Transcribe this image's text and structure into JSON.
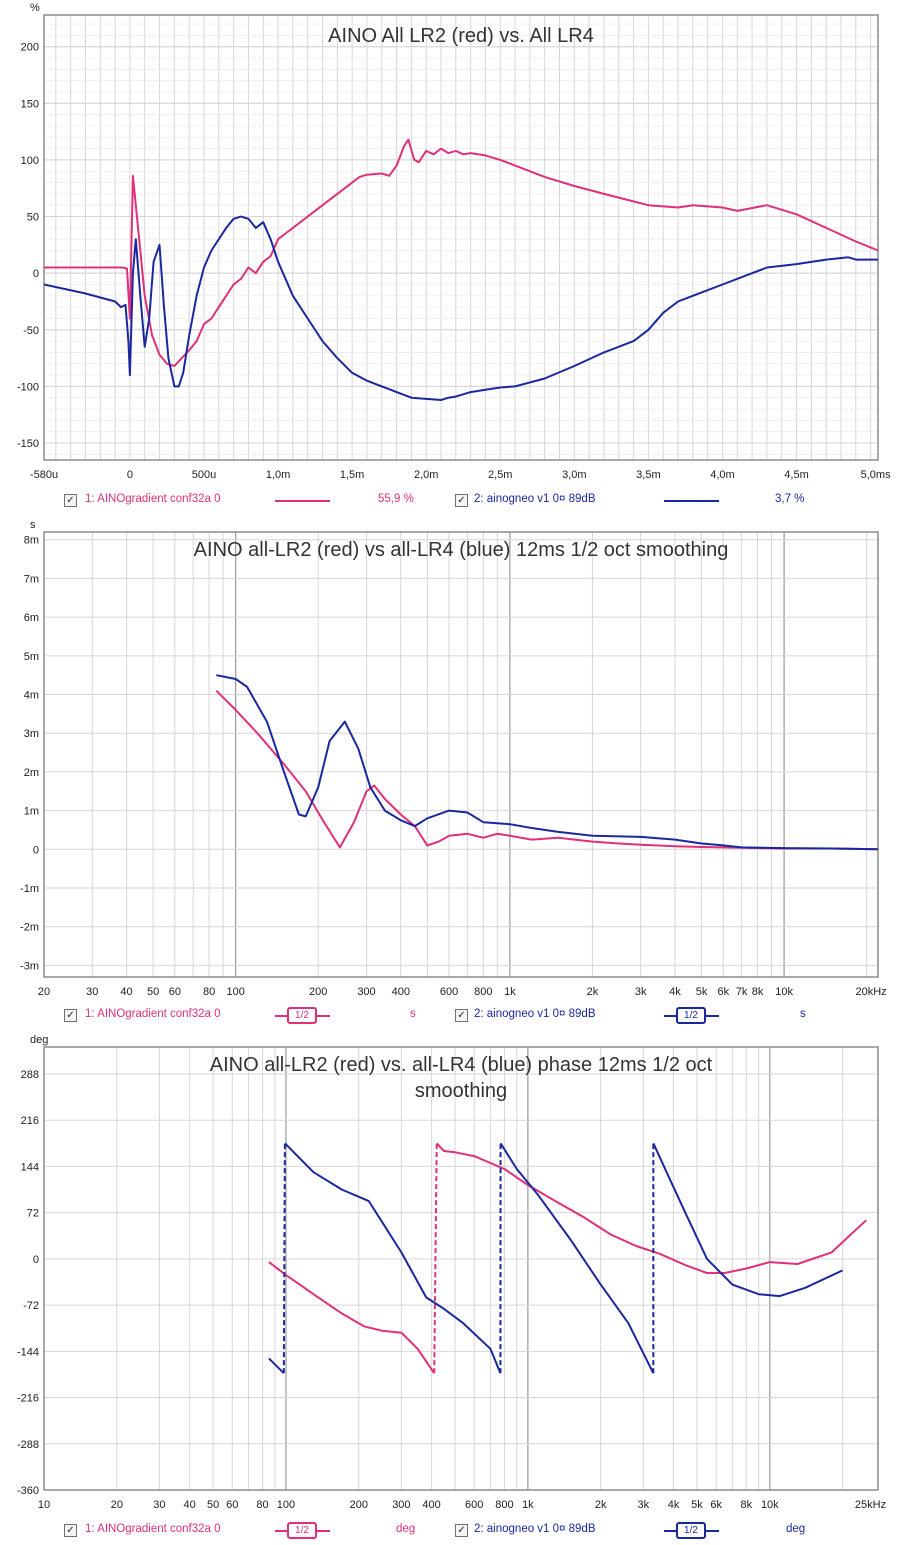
{
  "colors": {
    "red": "#e0307a",
    "blue": "#1a28a0",
    "grid_minor": "#d6d6d6",
    "grid_major": "#9a9a9a",
    "frame": "#8c8c8c"
  },
  "chart_data": [
    {
      "type": "line",
      "title": "AINO All LR2 (red) vs. All LR4",
      "ylabel": "%",
      "xunit": "ms",
      "xlim": [
        -0.58,
        5.05
      ],
      "ylim": [
        -165,
        228
      ],
      "yticks": [
        200,
        150,
        100,
        50,
        0,
        -50,
        -100,
        -150
      ],
      "ytick_labels": [
        "200",
        "150",
        "100",
        "50",
        "0",
        "-50",
        "-100",
        "-150"
      ],
      "xticks": [
        -0.58,
        0,
        0.5,
        1.0,
        1.5,
        2.0,
        2.5,
        3.0,
        3.5,
        4.0,
        4.5,
        5.0
      ],
      "xtick_labels": [
        "-580u",
        "0",
        "500u",
        "1,0m",
        "1,5m",
        "2,0m",
        "2,5m",
        "3,0m",
        "3,5m",
        "4,0m",
        "4,5m",
        "5,0ms"
      ],
      "grid": true,
      "series": [
        {
          "name": "1: AINOgradient conf32a 0",
          "color": "#e0307a",
          "value_text": "55,9 %",
          "x": [
            -0.58,
            -0.1,
            -0.05,
            -0.02,
            0,
            0.02,
            0.04,
            0.07,
            0.1,
            0.15,
            0.2,
            0.25,
            0.3,
            0.35,
            0.4,
            0.45,
            0.5,
            0.55,
            0.6,
            0.65,
            0.7,
            0.75,
            0.8,
            0.85,
            0.9,
            0.95,
            1.0,
            1.05,
            1.1,
            1.15,
            1.2,
            1.3,
            1.4,
            1.5,
            1.55,
            1.6,
            1.7,
            1.75,
            1.8,
            1.85,
            1.88,
            1.92,
            1.95,
            2.0,
            2.05,
            2.1,
            2.15,
            2.2,
            2.25,
            2.3,
            2.4,
            2.5,
            2.6,
            2.8,
            3.0,
            3.2,
            3.5,
            3.7,
            3.8,
            4.0,
            4.1,
            4.3,
            4.5,
            4.7,
            4.9,
            5.05
          ],
          "y": [
            5,
            5,
            5,
            4,
            -40,
            86,
            60,
            20,
            -20,
            -55,
            -72,
            -80,
            -82,
            -75,
            -68,
            -60,
            -45,
            -40,
            -30,
            -20,
            -10,
            -5,
            5,
            0,
            10,
            15,
            30,
            35,
            40,
            45,
            50,
            60,
            70,
            80,
            85,
            87,
            88,
            86,
            95,
            112,
            118,
            100,
            98,
            108,
            105,
            110,
            106,
            108,
            105,
            106,
            104,
            100,
            95,
            85,
            77,
            70,
            60,
            58,
            60,
            58,
            55,
            60,
            52,
            40,
            28,
            20
          ]
        },
        {
          "name": "2: ainogneo v1 0¤ 89dB",
          "color": "#1a28a0",
          "value_text": "3,7 %",
          "x": [
            -0.58,
            -0.3,
            -0.1,
            -0.06,
            -0.03,
            -0.01,
            0,
            0.02,
            0.04,
            0.07,
            0.1,
            0.13,
            0.16,
            0.2,
            0.23,
            0.26,
            0.3,
            0.33,
            0.36,
            0.4,
            0.45,
            0.5,
            0.55,
            0.6,
            0.65,
            0.7,
            0.75,
            0.8,
            0.85,
            0.9,
            0.95,
            1.0,
            1.1,
            1.2,
            1.3,
            1.4,
            1.5,
            1.6,
            1.8,
            1.9,
            2.0,
            2.1,
            2.15,
            2.2,
            2.3,
            2.4,
            2.5,
            2.6,
            2.8,
            3.0,
            3.2,
            3.4,
            3.5,
            3.6,
            3.7,
            3.8,
            3.9,
            4.0,
            4.1,
            4.2,
            4.3,
            4.5,
            4.7,
            4.85,
            4.9,
            5.05
          ],
          "y": [
            -10,
            -18,
            -25,
            -30,
            -28,
            -60,
            -90,
            0,
            30,
            -20,
            -65,
            -40,
            10,
            25,
            -30,
            -75,
            -100,
            -100,
            -88,
            -55,
            -20,
            5,
            20,
            30,
            40,
            48,
            50,
            48,
            40,
            45,
            30,
            10,
            -20,
            -40,
            -60,
            -75,
            -88,
            -95,
            -105,
            -110,
            -111,
            -112,
            -110,
            -109,
            -105,
            -103,
            -101,
            -100,
            -93,
            -82,
            -70,
            -60,
            -50,
            -35,
            -25,
            -20,
            -15,
            -10,
            -5,
            0,
            5,
            8,
            12,
            14,
            12,
            12
          ]
        }
      ]
    },
    {
      "type": "line",
      "title": "AINO all-LR2 (red) vs all-LR4 (blue) 12ms 1/2 oct smoothing",
      "ylabel": "s",
      "xscale": "log",
      "xlim": [
        20,
        22000
      ],
      "ylim": [
        -3.3,
        8.2
      ],
      "yticks": [
        8,
        7,
        6,
        5,
        4,
        3,
        2,
        1,
        0,
        -1,
        -2,
        -3
      ],
      "ytick_labels": [
        "8m",
        "7m",
        "6m",
        "5m",
        "4m",
        "3m",
        "2m",
        "1m",
        "0",
        "-1m",
        "-2m",
        "-3m"
      ],
      "xticks": [
        20,
        30,
        40,
        50,
        60,
        80,
        100,
        200,
        300,
        400,
        600,
        800,
        1000,
        2000,
        3000,
        4000,
        5000,
        6000,
        7000,
        8000,
        10000,
        20000
      ],
      "xtick_labels": [
        "20",
        "30",
        "40",
        "50",
        "60",
        "80",
        "100",
        "200",
        "300",
        "400",
        "600",
        "800",
        "1k",
        "2k",
        "3k",
        "4k",
        "5k",
        "6k",
        "7k",
        "8k",
        "10k",
        "20kHz"
      ],
      "major_x": [
        100,
        1000,
        10000
      ],
      "grid": true,
      "series": [
        {
          "name": "1: AINOgradient conf32a 0",
          "color": "#e0307a",
          "smoothing": "1/2",
          "unit": "s",
          "x": [
            85,
            100,
            120,
            150,
            180,
            210,
            240,
            270,
            300,
            320,
            350,
            400,
            450,
            500,
            550,
            600,
            700,
            800,
            900,
            1000,
            1200,
            1500,
            2000,
            2500,
            3000,
            4000,
            5000,
            7000,
            10000,
            15000,
            22000
          ],
          "y": [
            4.1,
            3.6,
            3.0,
            2.2,
            1.5,
            0.7,
            0.05,
            0.7,
            1.5,
            1.65,
            1.3,
            0.9,
            0.6,
            0.1,
            0.2,
            0.35,
            0.4,
            0.3,
            0.4,
            0.35,
            0.25,
            0.3,
            0.2,
            0.15,
            0.12,
            0.08,
            0.06,
            0.04,
            0.02,
            0.02,
            0.0
          ]
        },
        {
          "name": "2: ainogneo v1 0¤ 89dB",
          "color": "#1a28a0",
          "smoothing": "1/2",
          "unit": "s",
          "x": [
            85,
            100,
            110,
            130,
            150,
            170,
            180,
            200,
            220,
            250,
            280,
            310,
            350,
            400,
            450,
            500,
            600,
            700,
            800,
            1000,
            1200,
            1500,
            2000,
            3000,
            4000,
            5000,
            6000,
            7000,
            10000,
            15000,
            22000
          ],
          "y": [
            4.5,
            4.4,
            4.2,
            3.3,
            2.0,
            0.9,
            0.85,
            1.6,
            2.8,
            3.3,
            2.6,
            1.6,
            1.0,
            0.75,
            0.6,
            0.8,
            1.0,
            0.95,
            0.7,
            0.65,
            0.55,
            0.45,
            0.35,
            0.32,
            0.25,
            0.15,
            0.1,
            0.05,
            0.03,
            0.02,
            0.0
          ]
        }
      ]
    },
    {
      "type": "line",
      "title": "AINO all-LR2 (red) vs. all-LR4 (blue) phase 12ms 1/2 oct smoothing",
      "ylabel": "deg",
      "xscale": "log",
      "xlim": [
        10,
        28000
      ],
      "ylim": [
        -360,
        330
      ],
      "yticks": [
        288,
        216,
        144,
        72,
        0,
        -72,
        -144,
        -216,
        -288,
        -360
      ],
      "ytick_labels": [
        "288",
        "216",
        "144",
        "72",
        "0",
        "-72",
        "-144",
        "-216",
        "-288",
        "-360"
      ],
      "xticks": [
        10,
        20,
        30,
        40,
        50,
        60,
        80,
        100,
        200,
        300,
        400,
        600,
        800,
        1000,
        2000,
        3000,
        4000,
        5000,
        6000,
        8000,
        10000,
        25000
      ],
      "xtick_labels": [
        "10",
        "20",
        "30",
        "40",
        "50",
        "60",
        "80",
        "100",
        "200",
        "300",
        "400",
        "600",
        "800",
        "1k",
        "2k",
        "3k",
        "4k",
        "5k",
        "6k",
        "8k",
        "10k",
        "25kHz"
      ],
      "major_x": [
        100,
        1000,
        10000
      ],
      "grid": true,
      "series": [
        {
          "name": "1: AINOgradient conf32a 0",
          "color": "#e0307a",
          "smoothing": "1/2",
          "unit": "deg",
          "x": [
            85,
            100,
            130,
            170,
            210,
            250,
            300,
            350,
            410,
            420,
            450,
            500,
            600,
            800,
            1000,
            1300,
            1700,
            2200,
            2800,
            3500,
            4500,
            5500,
            6500,
            8000,
            10000,
            13000,
            18000,
            25000
          ],
          "y": [
            -5,
            -25,
            -55,
            -85,
            -105,
            -112,
            -115,
            -140,
            -178,
            180,
            168,
            166,
            160,
            140,
            115,
            90,
            65,
            38,
            20,
            8,
            -10,
            -22,
            -22,
            -15,
            -5,
            -8,
            10,
            60
          ]
        },
        {
          "name": "2: ainogneo v1 0¤ 89dB",
          "color": "#1a28a0",
          "smoothing": "1/2",
          "unit": "deg",
          "x": [
            85,
            98,
            99,
            130,
            170,
            220,
            300,
            380,
            450,
            540,
            700,
            770,
            771,
            900,
            1100,
            1500,
            2000,
            2600,
            3300,
            3301,
            3800,
            4500,
            5500,
            7000,
            9000,
            11000,
            14000,
            20000
          ],
          "y": [
            -155,
            -178,
            180,
            135,
            108,
            90,
            10,
            -60,
            -78,
            -100,
            -140,
            -178,
            180,
            140,
            100,
            30,
            -40,
            -100,
            -178,
            180,
            130,
            70,
            0,
            -40,
            -55,
            -58,
            -45,
            -18
          ]
        }
      ]
    }
  ]
}
